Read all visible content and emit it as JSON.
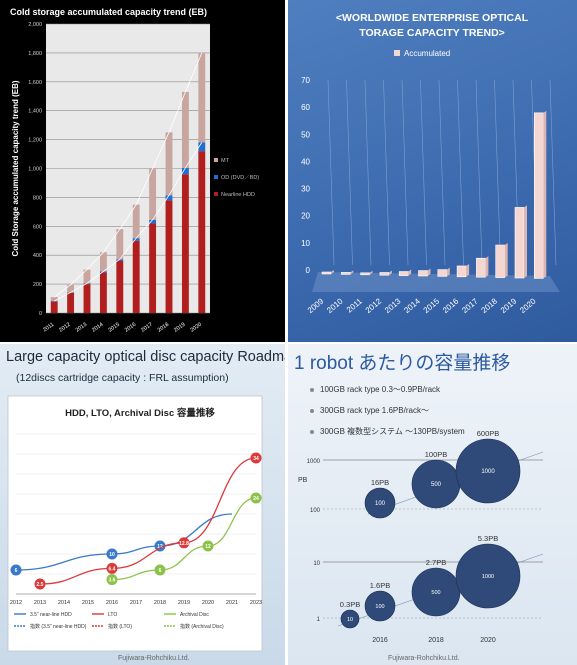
{
  "chart_data": [
    {
      "type": "bar",
      "title": "Cold storage accumulated capacity trend (EB)",
      "ylabel": "Cold Storage accumulated capacity trend (EB)",
      "ylim": [
        0,
        2000
      ],
      "yticks": [
        "0",
        "200",
        "400",
        "600",
        "800",
        "1,000",
        "1,200",
        "1,400",
        "1,600",
        "1,800",
        "2,000"
      ],
      "categories": [
        "2011",
        "2012",
        "2013",
        "2014",
        "2015",
        "2016",
        "2017",
        "2018",
        "2019",
        "2020"
      ],
      "legend": [
        "MT",
        "OD (DVD／BD)",
        "Nearline HDD"
      ],
      "series": [
        {
          "name": "Nearline HDD",
          "values": [
            80,
            140,
            200,
            280,
            360,
            500,
            620,
            780,
            960,
            1120
          ]
        },
        {
          "name": "OD (DVD／BD)",
          "values": [
            2,
            3,
            5,
            8,
            12,
            18,
            25,
            35,
            45,
            60
          ]
        },
        {
          "name": "MT",
          "values": [
            28,
            52,
            95,
            132,
            208,
            232,
            355,
            435,
            525,
            620
          ]
        }
      ],
      "colors": {
        "hdd": "#b01e1e",
        "od": "#1f6fd1",
        "mt": "#c9a5a0"
      },
      "background": "#000000"
    },
    {
      "type": "bar",
      "title": "<WORLDWIDE ENTERPRISE OPTICAL STORAGE CAPACITY TREND>",
      "legend": [
        "Accumulated"
      ],
      "ylim": [
        0,
        70
      ],
      "yticks": [
        "0",
        "10",
        "20",
        "30",
        "40",
        "50",
        "60",
        "70"
      ],
      "categories": [
        "2009",
        "2010",
        "2011",
        "2012",
        "2013",
        "2014",
        "2015",
        "2016",
        "2017",
        "2018",
        "2019",
        "2020"
      ],
      "values": [
        0,
        0,
        0.5,
        1,
        1.5,
        2,
        2.5,
        4,
        7,
        12,
        26,
        61
      ],
      "colors": {
        "bar": "#f4d7d2",
        "background": "#4572b5"
      }
    },
    {
      "type": "line",
      "title": "Large capacity optical disc capacity Roadmap",
      "subtitle": "(12discs cartridge capacity : FRL assumption)",
      "inner_title": "HDD, LTO, Archival Disc 容量推移",
      "x": [
        "2012",
        "2013",
        "2014",
        "2015",
        "2016",
        "2017",
        "2018",
        "2019",
        "2020",
        "2021",
        "2023"
      ],
      "legend": [
        "3.5” near-line HDD",
        "LTO",
        "Archival Disc",
        "指数 (3.5” near-line HDD)",
        "指数 (LTO)",
        "指数 (Archival Disc)"
      ],
      "series": [
        {
          "name": "3.5” near-line HDD",
          "color": "#3a78c9",
          "points": [
            {
              "x": "2012",
              "y": 6,
              "label": "6"
            },
            {
              "x": "2016",
              "y": 10,
              "label": "10"
            },
            {
              "x": "2018",
              "y": 12,
              "label": "12"
            },
            {
              "x": "2021",
              "y": 20
            }
          ]
        },
        {
          "name": "LTO",
          "color": "#dc3a3a",
          "points": [
            {
              "x": "2013",
              "y": 2.5,
              "label": "2.5"
            },
            {
              "x": "2016",
              "y": 6.4,
              "label": "6.4"
            },
            {
              "x": "2019",
              "y": 12.8,
              "label": "12.8"
            },
            {
              "x": "2023",
              "y": 34,
              "label": "34"
            }
          ]
        },
        {
          "name": "Archival Disc",
          "color": "#8cc24a",
          "points": [
            {
              "x": "2016",
              "y": 3.6,
              "label": "3.6"
            },
            {
              "x": "2018",
              "y": 6,
              "label": "6"
            },
            {
              "x": "2020",
              "y": 12,
              "label": "12"
            },
            {
              "x": "2023",
              "y": 24,
              "label": "24"
            }
          ]
        }
      ],
      "credit": "Fujiwara-Rohchiku.Ltd."
    },
    {
      "type": "scatter",
      "title": "1 robot あたりの容量推移",
      "bullets": [
        "100GB rack type 0.3～0.9PB/rack",
        "300GB rack type 1.6PB/rack～",
        "300GB 複数型システム ～130PB/system"
      ],
      "ylabel": "PB",
      "yscale": "log",
      "yticks": [
        "1000",
        "100",
        "10",
        "1"
      ],
      "x": [
        "2016",
        "2018",
        "2020"
      ],
      "upper_bubbles": [
        {
          "x": "2016",
          "size": "100",
          "label": "16PB"
        },
        {
          "x": "2018",
          "size": "500",
          "label": "100PB"
        },
        {
          "x": "2020",
          "size": "1000",
          "label": "600PB"
        }
      ],
      "lower_bubbles": [
        {
          "x": "2014",
          "size": "10",
          "label": "0.3PB"
        },
        {
          "x": "2016",
          "size": "100",
          "label": "1.6PB"
        },
        {
          "x": "2018",
          "size": "500",
          "label": "2.7PB"
        },
        {
          "x": "2020",
          "size": "1000",
          "label": "5.3PB"
        }
      ],
      "credit": "Fujiwara-Rohchiku.Ltd."
    }
  ]
}
